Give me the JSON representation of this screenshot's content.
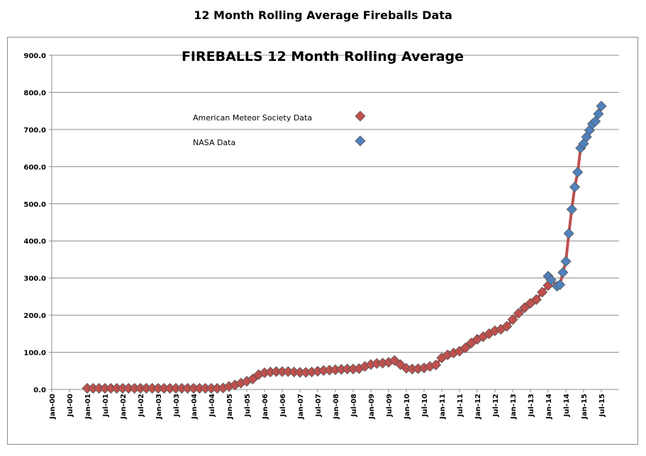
{
  "page_title": "12 Month Rolling Average Fireballs Data",
  "chart_data": {
    "type": "line",
    "title": "FIREBALLS 12 Month Rolling Average",
    "xlabel": "",
    "ylabel": "",
    "ylim": [
      0,
      900
    ],
    "y_ticks": [
      "0.0",
      "100.0",
      "200.0",
      "300.0",
      "400.0",
      "500.0",
      "600.0",
      "700.0",
      "800.0",
      "900.0"
    ],
    "x_tick_labels": [
      "Jan-00",
      "Jul-00",
      "Jan-01",
      "Jul-01",
      "Jan-02",
      "Jul-02",
      "Jan-03",
      "Jul-03",
      "Jan-04",
      "Jul-04",
      "Jan-05",
      "Jul-05",
      "Jan-06",
      "Jul-06",
      "Jan-07",
      "Jul-07",
      "Jan-08",
      "Jul-08",
      "Jan-09",
      "Jul-09",
      "Jan-10",
      "Jul-10",
      "Jan-11",
      "Jul-11",
      "Jan-12",
      "Jul-12",
      "Jan-13",
      "Jul-13",
      "Jan-14",
      "Jul-14",
      "Jan-15",
      "Jul-15"
    ],
    "grid": true,
    "legend": "top-center",
    "line_color": "#c0504d",
    "series": [
      {
        "name": "American Meteor Society Data",
        "color": "#c0504d",
        "marker": "diamond",
        "points": [
          [
            "Jan-01",
            3
          ],
          [
            "Mar-01",
            3
          ],
          [
            "May-01",
            3
          ],
          [
            "Jul-01",
            3
          ],
          [
            "Sep-01",
            3
          ],
          [
            "Nov-01",
            3
          ],
          [
            "Jan-02",
            3
          ],
          [
            "Mar-02",
            3
          ],
          [
            "May-02",
            3
          ],
          [
            "Jul-02",
            3
          ],
          [
            "Sep-02",
            3
          ],
          [
            "Nov-02",
            3
          ],
          [
            "Jan-03",
            3
          ],
          [
            "Mar-03",
            3
          ],
          [
            "May-03",
            3
          ],
          [
            "Jul-03",
            3
          ],
          [
            "Sep-03",
            3
          ],
          [
            "Nov-03",
            3
          ],
          [
            "Jan-04",
            3
          ],
          [
            "Mar-04",
            3
          ],
          [
            "May-04",
            3
          ],
          [
            "Jul-04",
            3
          ],
          [
            "Sep-04",
            3
          ],
          [
            "Nov-04",
            4
          ],
          [
            "Jan-05",
            8
          ],
          [
            "Mar-05",
            12
          ],
          [
            "May-05",
            17
          ],
          [
            "Jul-05",
            22
          ],
          [
            "Sep-05",
            28
          ],
          [
            "Nov-05",
            40
          ],
          [
            "Jan-06",
            45
          ],
          [
            "Mar-06",
            47
          ],
          [
            "May-06",
            48
          ],
          [
            "Jul-06",
            48
          ],
          [
            "Sep-06",
            48
          ],
          [
            "Nov-06",
            47
          ],
          [
            "Jan-07",
            46
          ],
          [
            "Mar-07",
            46
          ],
          [
            "May-07",
            47
          ],
          [
            "Jul-07",
            49
          ],
          [
            "Sep-07",
            51
          ],
          [
            "Nov-07",
            52
          ],
          [
            "Jan-08",
            53
          ],
          [
            "Mar-08",
            54
          ],
          [
            "May-08",
            55
          ],
          [
            "Jul-08",
            55
          ],
          [
            "Sep-08",
            56
          ],
          [
            "Nov-08",
            62
          ],
          [
            "Jan-09",
            67
          ],
          [
            "Mar-09",
            70
          ],
          [
            "May-09",
            71
          ],
          [
            "Jul-09",
            73
          ],
          [
            "Sep-09",
            78
          ],
          [
            "Nov-09",
            67
          ],
          [
            "Jan-10",
            57
          ],
          [
            "Mar-10",
            55
          ],
          [
            "May-10",
            56
          ],
          [
            "Jul-10",
            58
          ],
          [
            "Sep-10",
            62
          ],
          [
            "Nov-10",
            66
          ],
          [
            "Jan-11",
            85
          ],
          [
            "Mar-11",
            93
          ],
          [
            "May-11",
            98
          ],
          [
            "Jul-11",
            103
          ],
          [
            "Sep-11",
            112
          ],
          [
            "Nov-11",
            125
          ],
          [
            "Jan-12",
            135
          ],
          [
            "Mar-12",
            142
          ],
          [
            "May-12",
            150
          ],
          [
            "Jul-12",
            158
          ],
          [
            "Sep-12",
            162
          ],
          [
            "Nov-12",
            170
          ],
          [
            "Jan-13",
            188
          ],
          [
            "Mar-13",
            205
          ],
          [
            "May-13",
            220
          ],
          [
            "Jul-13",
            232
          ],
          [
            "Sep-13",
            242
          ],
          [
            "Nov-13",
            262
          ],
          [
            "Jan-14",
            280
          ]
        ]
      },
      {
        "name": "NASA Data",
        "color": "#4f81bd",
        "marker": "diamond",
        "points": [
          [
            "Jan-14",
            305
          ],
          [
            "Feb-14",
            295
          ],
          [
            "Apr-14",
            278
          ],
          [
            "May-14",
            282
          ],
          [
            "Jun-14",
            315
          ],
          [
            "Jul-14",
            345
          ],
          [
            "Aug-14",
            420
          ],
          [
            "Sep-14",
            485
          ],
          [
            "Oct-14",
            545
          ],
          [
            "Nov-14",
            585
          ],
          [
            "Dec-14",
            650
          ],
          [
            "Jan-15",
            662
          ],
          [
            "Feb-15",
            680
          ],
          [
            "Mar-15",
            698
          ],
          [
            "Apr-15",
            715
          ],
          [
            "May-15",
            722
          ],
          [
            "Jun-15",
            742
          ],
          [
            "Jul-15",
            763
          ]
        ]
      }
    ]
  }
}
